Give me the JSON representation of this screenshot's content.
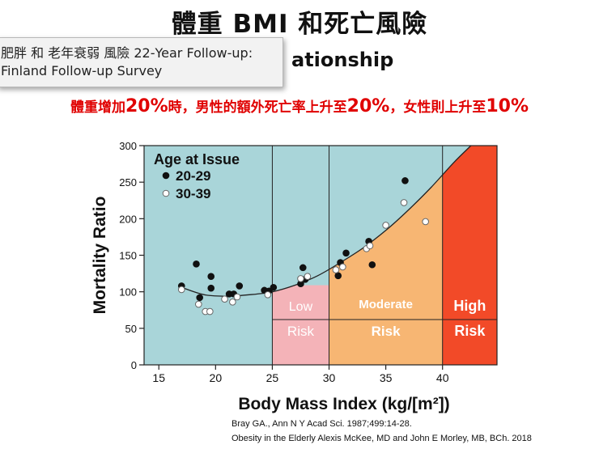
{
  "slide": {
    "title": "體重 BMI 和死亡風險",
    "subtitle_visible": "ationship",
    "tooltip_line1": "肥胖 和 老年衰弱 風險 22-Year Follow-up:",
    "tooltip_line2": "Finland Follow-up Survey",
    "highlight": {
      "p1": "體重增加",
      "v1": "20%",
      "p2": "時，男性的額外",
      "p3": "死亡率上升至",
      "v2": "20%",
      "p4": "，女性則上升至",
      "v3": "10%"
    },
    "citation1": "Bray GA., Ann N Y Acad Sci. 1987;499:14-28.",
    "citation2": "Obesity in the Elderly Alexis McKee, MD and John E Morley, MB, BCh. 2018"
  },
  "colors": {
    "zone_normal": "#a9d5d9",
    "zone_low": "#f4b3b8",
    "zone_moderate": "#f7b673",
    "zone_high": "#f24a28",
    "highlight_red": "#e00000"
  },
  "chart_data": {
    "type": "scatter",
    "xlabel": "Body Mass Index (kg/[m²])",
    "ylabel": "Mortality Ratio",
    "xlim": [
      13.7,
      44.8
    ],
    "ylim": [
      0,
      300
    ],
    "x_ticks": [
      "15",
      "20",
      "25",
      "30",
      "35",
      "40"
    ],
    "y_ticks": [
      "0",
      "50",
      "100",
      "150",
      "200",
      "250",
      "300"
    ],
    "legend_title": "Age at Issue",
    "series": [
      {
        "name": "20-29",
        "marker": "filled",
        "points": [
          [
            17,
            108
          ],
          [
            18.3,
            138
          ],
          [
            18.6,
            92
          ],
          [
            19.6,
            121
          ],
          [
            19.6,
            105
          ],
          [
            21.2,
            97
          ],
          [
            21.6,
            97
          ],
          [
            22.1,
            108
          ],
          [
            24.3,
            102
          ],
          [
            24.7,
            101
          ],
          [
            25.1,
            106
          ],
          [
            27.5,
            111
          ],
          [
            27.7,
            133
          ],
          [
            27.9,
            117
          ],
          [
            30.8,
            122
          ],
          [
            31,
            140
          ],
          [
            31.5,
            153
          ],
          [
            33.5,
            169
          ],
          [
            33.8,
            137
          ],
          [
            36.7,
            252
          ]
        ]
      },
      {
        "name": "30-39",
        "marker": "open",
        "points": [
          [
            17,
            103
          ],
          [
            18.5,
            83
          ],
          [
            19.1,
            73
          ],
          [
            19.5,
            73
          ],
          [
            20.8,
            90
          ],
          [
            21.5,
            86
          ],
          [
            21.9,
            93
          ],
          [
            24.6,
            96
          ],
          [
            27.5,
            118
          ],
          [
            28.1,
            121
          ],
          [
            30.6,
            130
          ],
          [
            31.2,
            134
          ],
          [
            33.3,
            159
          ],
          [
            33.6,
            163
          ],
          [
            35,
            191
          ],
          [
            36.6,
            222
          ],
          [
            38.5,
            196
          ]
        ]
      }
    ],
    "fit_curve": [
      [
        17,
        106
      ],
      [
        19,
        96
      ],
      [
        21,
        94
      ],
      [
        23,
        96
      ],
      [
        25,
        100
      ],
      [
        27,
        109
      ],
      [
        29,
        122
      ],
      [
        31,
        140
      ],
      [
        33,
        160
      ],
      [
        35,
        184
      ],
      [
        37,
        212
      ],
      [
        39,
        243
      ],
      [
        41,
        277
      ],
      [
        42.5,
        300
      ]
    ],
    "zones": [
      {
        "name": "normal",
        "x_from": 13.7,
        "x_to": 25,
        "label_top": "",
        "label_bottom": ""
      },
      {
        "name": "low",
        "x_from": 25,
        "x_to": 30,
        "label_top": "Low",
        "label_bottom": "Risk"
      },
      {
        "name": "moderate",
        "x_from": 30,
        "x_to": 40,
        "label_top": "Moderate",
        "label_bottom": "Risk"
      },
      {
        "name": "high",
        "x_from": 40,
        "x_to": 44.8,
        "label_top": "High",
        "label_bottom": "Risk"
      }
    ],
    "zone_divider_y": 62
  }
}
